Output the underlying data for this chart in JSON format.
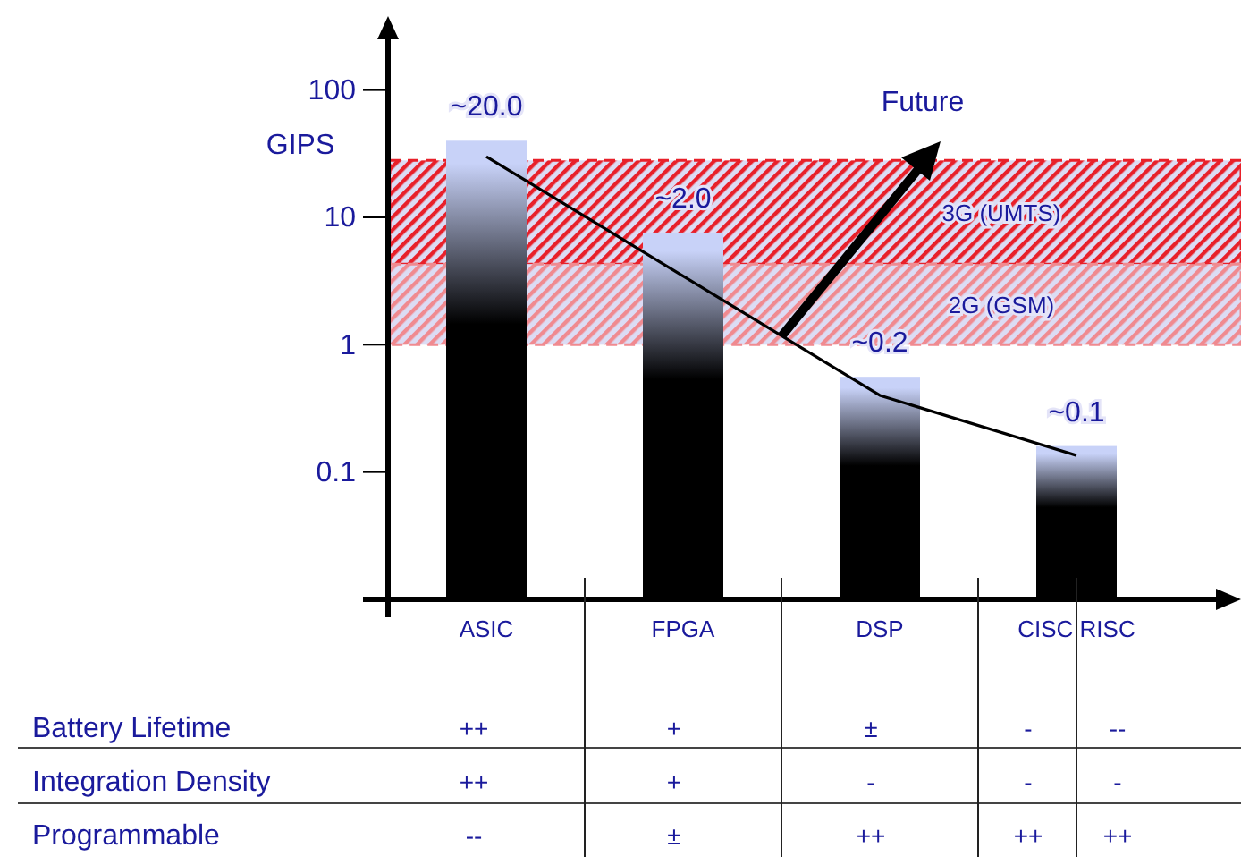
{
  "chart_data": [
    {
      "type": "bar",
      "ylabel": "GIPS",
      "categories": [
        "ASIC",
        "FPGA",
        "DSP",
        "CISC RISC"
      ],
      "series": [
        {
          "type": "bar",
          "color": "#000000",
          "values": [
            40,
            7.6,
            0.56,
            0.16
          ]
        },
        {
          "type": "line",
          "color": "#000000",
          "x": [
            "ASIC",
            "DSP",
            "CISC RISC"
          ],
          "values": [
            30,
            0.4,
            0.135
          ]
        }
      ],
      "log": true,
      "ylim": [
        0.01,
        250
      ],
      "yticks": [
        0.1,
        1,
        10,
        100
      ],
      "grid": false,
      "marker": "none",
      "line_style": "solid",
      "bands": [
        {
          "axis": "y",
          "from": 4.3,
          "to": 28,
          "label": "3G (UMTS)",
          "color": "#e8202a"
        },
        {
          "axis": "y",
          "from": 1,
          "to": 4.3,
          "label": "2G (GSM)",
          "color": "#f08a90"
        }
      ],
      "annotations": [
        {
          "text": "~20.0",
          "x": "ASIC",
          "y": 40
        },
        {
          "text": "~2.0",
          "x": "FPGA",
          "y": 7.6
        },
        {
          "text": "~0.2",
          "x": "DSP",
          "y": 0.56
        },
        {
          "text": "~0.1",
          "x": "CISC RISC",
          "y": 0.16
        },
        "Future"
      ]
    },
    {
      "type": "other",
      "y_categories": [
        "Battery Lifetime",
        "Integration Density",
        "Programmable"
      ],
      "cell_labels": [
        [
          "++",
          "+",
          "±",
          "-",
          "--"
        ],
        [
          "++",
          "+",
          "-",
          "-",
          "-"
        ],
        [
          "--",
          "±",
          "++",
          "++",
          "++"
        ]
      ]
    }
  ]
}
